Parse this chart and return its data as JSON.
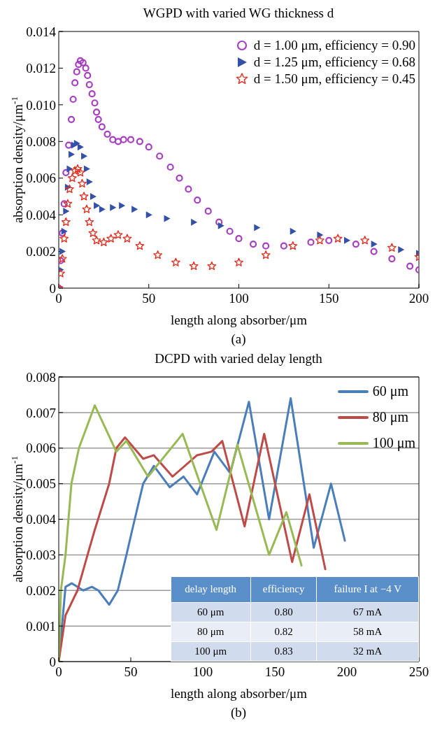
{
  "chart_data": [
    {
      "type": "scatter",
      "title": "WGPD with varied WG thickness d",
      "xlabel": "length along absorber/μm",
      "ylabel": "absorption density/μm$^{-1}$",
      "annotations": [
        "(a)"
      ],
      "xlim": [
        0,
        200
      ],
      "xticks": [
        0,
        50,
        100,
        150,
        200
      ],
      "ylim": [
        0,
        0.014
      ],
      "yticks": [
        0,
        0.002,
        0.004,
        0.006,
        0.008,
        {
          "value": 0.01,
          "label": "0.010"
        },
        0.012,
        0.014
      ],
      "grid": false,
      "legend": "top right",
      "series": [
        {
          "name": "d = 1.00 μm, efficiency = 0.90",
          "color": "#a63fbf",
          "marker": "circle",
          "x": [
            0,
            1,
            2,
            3,
            4,
            5.5,
            7,
            8,
            9,
            10,
            11,
            12,
            13.5,
            15,
            16,
            17,
            18.5,
            20,
            21,
            22,
            24,
            27,
            30,
            33,
            36,
            40,
            45,
            50,
            56,
            62,
            67,
            72,
            77,
            83,
            89,
            95,
            100,
            108,
            115,
            125,
            140,
            150,
            165,
            175,
            185,
            195,
            200
          ],
          "values": [
            0,
            0.0015,
            0.003,
            0.0046,
            0.0063,
            0.0078,
            0.0092,
            0.0103,
            0.0112,
            0.0118,
            0.0122,
            0.0124,
            0.0123,
            0.012,
            0.0116,
            0.0111,
            0.0106,
            0.0101,
            0.0096,
            0.0092,
            0.0088,
            0.0084,
            0.0081,
            0.008,
            0.0081,
            0.0081,
            0.008,
            0.0077,
            0.0072,
            0.0066,
            0.006,
            0.0054,
            0.0048,
            0.0042,
            0.0036,
            0.0031,
            0.0027,
            0.0024,
            0.0023,
            0.0023,
            0.0025,
            0.0026,
            0.0024,
            0.002,
            0.0016,
            0.0012,
            0.001
          ]
        },
        {
          "name": "d = 1.25 μm, efficiency = 0.68",
          "color": "#3550a8",
          "marker": "triangle",
          "x": [
            0,
            1,
            2,
            3,
            4,
            5,
            6,
            7,
            8.5,
            10,
            12,
            14,
            15.5,
            17,
            19,
            21,
            24,
            30,
            35,
            42,
            50,
            60,
            75,
            90,
            110,
            130,
            145,
            160,
            175,
            190,
            200
          ],
          "values": [
            0,
            0.001,
            0.002,
            0.0031,
            0.0042,
            0.0055,
            0.0065,
            0.0073,
            0.0078,
            0.0079,
            0.0077,
            0.0072,
            0.0065,
            0.0058,
            0.005,
            0.0045,
            0.0043,
            0.0044,
            0.0045,
            0.0043,
            0.004,
            0.0038,
            0.0036,
            0.0034,
            0.0033,
            0.0031,
            0.0029,
            0.0026,
            0.0024,
            0.0021,
            0.0019
          ]
        },
        {
          "name": "d = 1.50 μm, efficiency = 0.45",
          "color": "#e03020",
          "marker": "star",
          "x": [
            0,
            1,
            2,
            3,
            4,
            5,
            6,
            7.5,
            9,
            10.5,
            12,
            13,
            14,
            15.5,
            17,
            19,
            21,
            25,
            29,
            33,
            38,
            45,
            55,
            65,
            75,
            85,
            100,
            115,
            130,
            145,
            155,
            170,
            185,
            200
          ],
          "values": [
            0,
            0.0008,
            0.0016,
            0.0027,
            0.0036,
            0.0046,
            0.0054,
            0.006,
            0.0064,
            0.0065,
            0.0063,
            0.0057,
            0.005,
            0.0043,
            0.0036,
            0.003,
            0.0026,
            0.0025,
            0.0027,
            0.0029,
            0.0027,
            0.0023,
            0.0018,
            0.0014,
            0.0012,
            0.0012,
            0.0014,
            0.0018,
            0.0023,
            0.0026,
            0.0027,
            0.0026,
            0.0022,
            0.0017
          ]
        }
      ]
    },
    {
      "type": "line",
      "title": "DCPD with varied delay length",
      "xlabel": "length along absorber/μm",
      "ylabel": "absorption density/μm$^{-1}$",
      "annotations": [
        "(b)"
      ],
      "xlim": [
        0,
        250
      ],
      "xticks": [
        0,
        50,
        100,
        150,
        200,
        250
      ],
      "ylim": [
        0,
        0.008
      ],
      "yticks": [
        0,
        0.001,
        0.002,
        0.003,
        0.004,
        0.005,
        0.006,
        0.007,
        0.008
      ],
      "grid": "y",
      "legend": "top right",
      "marker": "none",
      "line_style": "solid",
      "series": [
        {
          "name": "60 μm",
          "color": "#4a7ebb",
          "x": [
            0,
            4.7,
            9,
            17,
            23,
            27.5,
            35,
            41,
            47,
            51,
            58.6,
            66,
            77,
            86.6,
            96,
            108,
            119,
            132,
            146,
            161,
            177,
            189,
            198.6
          ],
          "values": [
            0,
            0.0021,
            0.0022,
            0.002,
            0.0021,
            0.002,
            0.0016,
            0.002,
            0.003,
            0.0037,
            0.005,
            0.0055,
            0.0049,
            0.0052,
            0.0047,
            0.0059,
            0.0053,
            0.0073,
            0.004,
            0.0074,
            0.0032,
            0.005,
            0.0034
          ]
        },
        {
          "name": "80 μm",
          "color": "#be4b48",
          "x": [
            0,
            4.7,
            13,
            20,
            25,
            35,
            40,
            46,
            58.6,
            66,
            79,
            96,
            106,
            113.5,
            129,
            142.6,
            162,
            174,
            185
          ],
          "values": [
            0,
            0.0013,
            0.002,
            0.003,
            0.0037,
            0.005,
            0.006,
            0.0063,
            0.0057,
            0.0058,
            0.0052,
            0.0058,
            0.0059,
            0.0062,
            0.0038,
            0.0064,
            0.0028,
            0.0047,
            0.0026
          ]
        },
        {
          "name": "100 μm",
          "color": "#98b954",
          "x": [
            0,
            1.5,
            4.7,
            8.8,
            14,
            25,
            40,
            47,
            62,
            86,
            109.5,
            124,
            146,
            158,
            168.5
          ],
          "values": [
            0,
            0.002,
            0.003,
            0.005,
            0.006,
            0.0072,
            0.0059,
            0.0062,
            0.0052,
            0.0064,
            0.0037,
            0.0061,
            0.003,
            0.0042,
            0.0027
          ]
        }
      ]
    },
    {
      "type": "other",
      "categories": [
        "delay length",
        "efficiency",
        "failure I at −4 V"
      ],
      "annotations": [
        "60 μm",
        "0.80",
        "67 mA",
        "80 μm",
        "0.82",
        "58 mA",
        "100 μm",
        "0.83",
        "32 mA"
      ]
    }
  ]
}
